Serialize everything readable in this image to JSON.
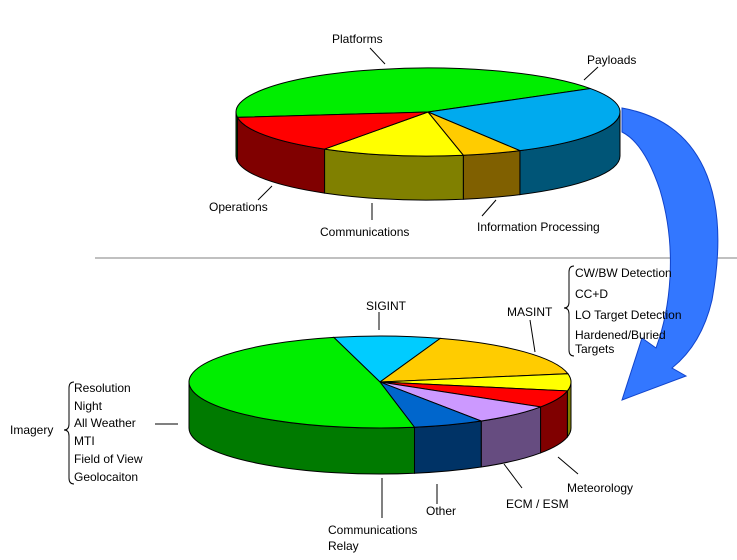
{
  "chart_data": [
    {
      "type": "pie",
      "style": "3d",
      "slices": [
        {
          "label": "Platforms",
          "value": 43,
          "color": "#00ee00",
          "side": "#007a00"
        },
        {
          "label": "Payloads",
          "value": 26,
          "color": "#00aaee",
          "side": "#005577"
        },
        {
          "label": "Information Processing",
          "value": 5,
          "color": "#ffcc00",
          "side": "#806000"
        },
        {
          "label": "Communications",
          "value": 12,
          "color": "#ffff00",
          "side": "#808000"
        },
        {
          "label": "Operations",
          "value": 14,
          "color": "#ff0000",
          "side": "#800000"
        }
      ]
    },
    {
      "type": "pie",
      "style": "3d",
      "slices": [
        {
          "label": "SIGINT",
          "value": 9,
          "color": "#00ccff",
          "side": "#006688"
        },
        {
          "label": "MASINT",
          "value": 17,
          "color": "#ffcc00",
          "side": "#806000"
        },
        {
          "label": "Meteorology",
          "value": 6,
          "color": "#ffff00",
          "side": "#808000"
        },
        {
          "label": "ECM / ESM",
          "value": 6,
          "color": "#ff0000",
          "side": "#800000"
        },
        {
          "label": "Other",
          "value": 7,
          "color": "#cc99ff",
          "side": "#664c80"
        },
        {
          "label": "Communications Relay",
          "value": 6,
          "color": "#0066cc",
          "side": "#003366"
        },
        {
          "label": "Imagery",
          "value": 49,
          "color": "#00ee00",
          "side": "#007a00"
        }
      ],
      "annotations": {
        "masint_list": [
          "CW/BW Detection",
          "CC+D",
          "LO Target Detection",
          "Hardened/Buried",
          "Targets"
        ],
        "imagery_list": [
          "Resolution",
          "Night",
          "All Weather",
          "MTI",
          "Field of View",
          "Geolocaiton"
        ],
        "comm_relay_lines": [
          "Communications",
          "Relay"
        ]
      }
    }
  ]
}
